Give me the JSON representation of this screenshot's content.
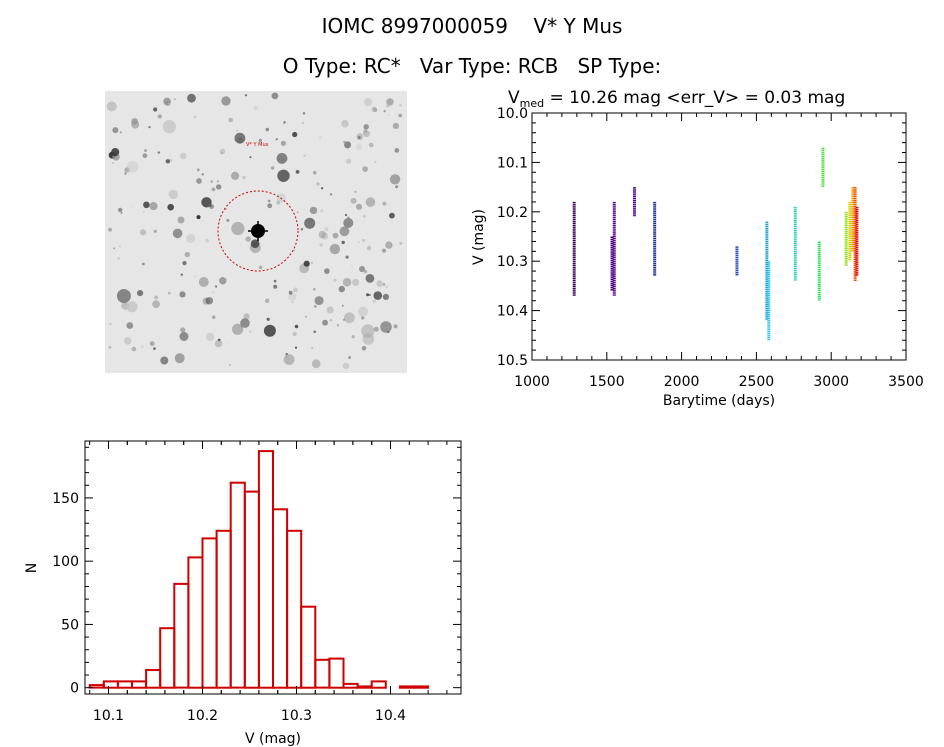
{
  "header": {
    "title_line1": "IOMC 8997000059    V* Y Mus",
    "title_line2": "O Type: RC*   Var Type: RCB   SP Type:"
  },
  "sky_image": {
    "target_label": "V* Y Mus",
    "circle_color": "#d00000"
  },
  "chart_data": [
    {
      "type": "scatter",
      "title_parts": {
        "prefix": "V",
        "subscript": "med",
        "rest": " = 10.26 mag <err_V> = 0.03 mag"
      },
      "xlabel": "Barytime (days)",
      "ylabel": "V (mag)",
      "xlim": [
        1000,
        3500
      ],
      "ylim": [
        10.5,
        10.0
      ],
      "y_inverted": true,
      "xticks": [
        1000,
        1500,
        2000,
        2500,
        3000,
        3500
      ],
      "yticks": [
        10.0,
        10.1,
        10.2,
        10.3,
        10.4,
        10.5
      ],
      "ytick_labels": [
        "10.0",
        "10.1",
        "10.2",
        "10.3",
        "10.4",
        "10.5"
      ],
      "grid": false,
      "series": [
        {
          "x": 1282,
          "y_min": 10.18,
          "y_max": 10.37,
          "color": "#3a0050"
        },
        {
          "x": 1535,
          "y_min": 10.25,
          "y_max": 10.36,
          "color": "#4a0070"
        },
        {
          "x": 1550,
          "y_min": 10.18,
          "y_max": 10.37,
          "color": "#5a0090"
        },
        {
          "x": 1685,
          "y_min": 10.15,
          "y_max": 10.21,
          "color": "#5000a0"
        },
        {
          "x": 1820,
          "y_min": 10.18,
          "y_max": 10.33,
          "color": "#1a30a0"
        },
        {
          "x": 2370,
          "y_min": 10.27,
          "y_max": 10.33,
          "color": "#2050c0"
        },
        {
          "x": 2570,
          "y_min": 10.22,
          "y_max": 10.42,
          "color": "#20a0d8"
        },
        {
          "x": 2583,
          "y_min": 10.3,
          "y_max": 10.46,
          "color": "#30c8e8"
        },
        {
          "x": 2760,
          "y_min": 10.19,
          "y_max": 10.34,
          "color": "#30d0c0"
        },
        {
          "x": 2920,
          "y_min": 10.26,
          "y_max": 10.38,
          "color": "#30e060"
        },
        {
          "x": 2945,
          "y_min": 10.07,
          "y_max": 10.15,
          "color": "#50e040"
        },
        {
          "x": 3100,
          "y_min": 10.2,
          "y_max": 10.31,
          "color": "#90e020"
        },
        {
          "x": 3125,
          "y_min": 10.18,
          "y_max": 10.3,
          "color": "#d0d000"
        },
        {
          "x": 3145,
          "y_min": 10.15,
          "y_max": 10.28,
          "color": "#f0a000"
        },
        {
          "x": 3160,
          "y_min": 10.15,
          "y_max": 10.34,
          "color": "#f05000"
        },
        {
          "x": 3172,
          "y_min": 10.19,
          "y_max": 10.33,
          "color": "#e01010"
        }
      ]
    },
    {
      "type": "bar",
      "subtype": "histogram",
      "xlabel": "V (mag)",
      "ylabel": "N",
      "xlim": [
        0.075,
        0.475
      ],
      "xlim_offset": 10,
      "ylim": [
        -5,
        195
      ],
      "xticks": [
        10.1,
        10.2,
        10.3,
        10.4
      ],
      "xtick_labels": [
        "10.1",
        "10.2",
        "10.3",
        "10.4"
      ],
      "yticks": [
        0,
        50,
        100,
        150
      ],
      "ytick_labels": [
        "0",
        "50",
        "100",
        "150"
      ],
      "bin_start": 10.08,
      "bin_width": 0.015,
      "color": "#d00000",
      "values": [
        2,
        5,
        5,
        5,
        14,
        47,
        82,
        103,
        118,
        124,
        162,
        155,
        187,
        141,
        124,
        64,
        22,
        23,
        3,
        1,
        5,
        0,
        1,
        1
      ]
    }
  ]
}
